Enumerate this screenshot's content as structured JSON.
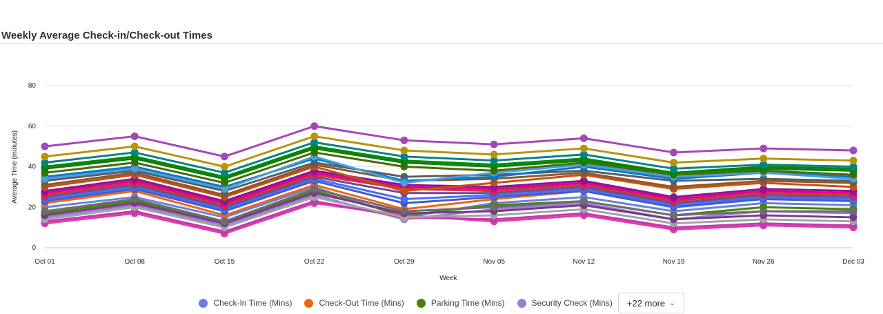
{
  "title": "Weekly Average Check-in/Check-out Times",
  "chart_data": {
    "type": "line",
    "title": "Weekly Average Check-in/Check-out Times",
    "xlabel": "Week",
    "ylabel": "Average Time (minutes)",
    "ylim": [
      0,
      80
    ],
    "yticks": [
      0,
      20,
      40,
      60,
      80
    ],
    "categories": [
      "Oct 01",
      "Oct 08",
      "Oct 15",
      "Oct 22",
      "Oct 29",
      "Nov 05",
      "Nov 12",
      "Nov 19",
      "Nov 26",
      "Dec 03"
    ],
    "grid": true,
    "legend_position": "bottom",
    "series": [
      {
        "name": "Check-In Time (Mins)",
        "color": "#6b7fe3",
        "values": [
          20,
          25,
          15,
          30,
          15,
          22,
          25,
          18,
          22,
          21
        ]
      },
      {
        "name": "Check-Out Time (Mins)",
        "color": "#f7630c",
        "values": [
          22,
          28,
          16,
          31,
          19,
          24,
          28,
          20,
          25,
          23
        ]
      },
      {
        "name": "Parking Time (Mins)",
        "color": "#498205",
        "values": [
          17,
          23,
          12,
          28,
          16,
          21,
          23,
          16,
          20,
          19
        ]
      },
      {
        "name": "Security Check (Mins)",
        "color": "#9a7fd1",
        "values": [
          15,
          21,
          11,
          26,
          14,
          19,
          22,
          14,
          18,
          17
        ]
      },
      {
        "color": "#e43ba6",
        "values": [
          12,
          17,
          7,
          22,
          16,
          13,
          16,
          9,
          11,
          10
        ]
      },
      {
        "color": "#c239b3",
        "values": [
          13,
          18,
          8,
          23,
          15,
          14,
          17,
          10,
          12,
          11
        ]
      },
      {
        "color": "#a4a4a4",
        "values": [
          14,
          20,
          10,
          25,
          15,
          16,
          19,
          12,
          14,
          13
        ]
      },
      {
        "color": "#7a3a8c",
        "values": [
          16,
          22,
          12,
          27,
          17,
          18,
          21,
          14,
          16,
          15
        ]
      },
      {
        "color": "#6d6d6d",
        "values": [
          18,
          24,
          13,
          29,
          18,
          20,
          23,
          16,
          18,
          18
        ]
      },
      {
        "color": "#3a5fcd",
        "values": [
          23,
          29,
          18,
          33,
          22,
          25,
          28,
          20,
          24,
          23
        ]
      },
      {
        "color": "#4f6bed",
        "values": [
          24,
          30,
          19,
          34,
          24,
          26,
          29,
          21,
          25,
          24
        ]
      },
      {
        "color": "#6a4c93",
        "values": [
          25,
          31,
          20,
          35,
          27,
          27,
          30,
          22,
          26,
          25
        ]
      },
      {
        "color": "#d13438",
        "values": [
          26,
          32,
          21,
          36,
          29,
          28,
          31,
          23,
          27,
          26
        ]
      },
      {
        "color": "#e3008c",
        "values": [
          27,
          33,
          22,
          37,
          30,
          29,
          32,
          24,
          28,
          27
        ]
      },
      {
        "color": "#881798",
        "values": [
          28,
          34,
          23,
          38,
          31,
          30,
          33,
          25,
          29,
          28
        ]
      },
      {
        "color": "#ca5010",
        "values": [
          30,
          36,
          25,
          40,
          28,
          32,
          36,
          29,
          32,
          30
        ]
      },
      {
        "color": "#8e562e",
        "values": [
          31,
          37,
          26,
          41,
          33,
          34,
          37,
          30,
          33,
          32
        ]
      },
      {
        "color": "#5c5c5c",
        "values": [
          33,
          38,
          28,
          42,
          35,
          36,
          38,
          33,
          34,
          33
        ]
      },
      {
        "color": "#0078d4",
        "values": [
          35,
          40,
          30,
          44,
          33,
          35,
          40,
          34,
          37,
          35
        ]
      },
      {
        "color": "#4a9fd8",
        "values": [
          34,
          39,
          29,
          45,
          32,
          37,
          41,
          35,
          37,
          34
        ]
      },
      {
        "color": "#486b00",
        "values": [
          37,
          42,
          32,
          47,
          40,
          38,
          42,
          36,
          38,
          36
        ]
      },
      {
        "color": "#107c10",
        "values": [
          39,
          44,
          34,
          49,
          42,
          40,
          43,
          37,
          39,
          38
        ]
      },
      {
        "color": "#008a00",
        "values": [
          40,
          45,
          35,
          50,
          43,
          41,
          44,
          37,
          40,
          39
        ]
      },
      {
        "color": "#038387",
        "values": [
          42,
          47,
          37,
          52,
          45,
          43,
          46,
          39,
          41,
          40
        ]
      },
      {
        "color": "#b7950b",
        "values": [
          45,
          50,
          40,
          55,
          48,
          46,
          49,
          42,
          44,
          43
        ]
      },
      {
        "color": "#a347ba",
        "values": [
          50,
          55,
          45,
          60,
          53,
          51,
          54,
          47,
          49,
          48
        ]
      }
    ]
  },
  "legend": {
    "items": [
      {
        "label": "Check-In Time (Mins)",
        "color": "#6b7fe3"
      },
      {
        "label": "Check-Out Time (Mins)",
        "color": "#f7630c"
      },
      {
        "label": "Parking Time (Mins)",
        "color": "#498205"
      },
      {
        "label": "Security Check (Mins)",
        "color": "#9a7fd1"
      }
    ],
    "more_label": "+22 more"
  }
}
